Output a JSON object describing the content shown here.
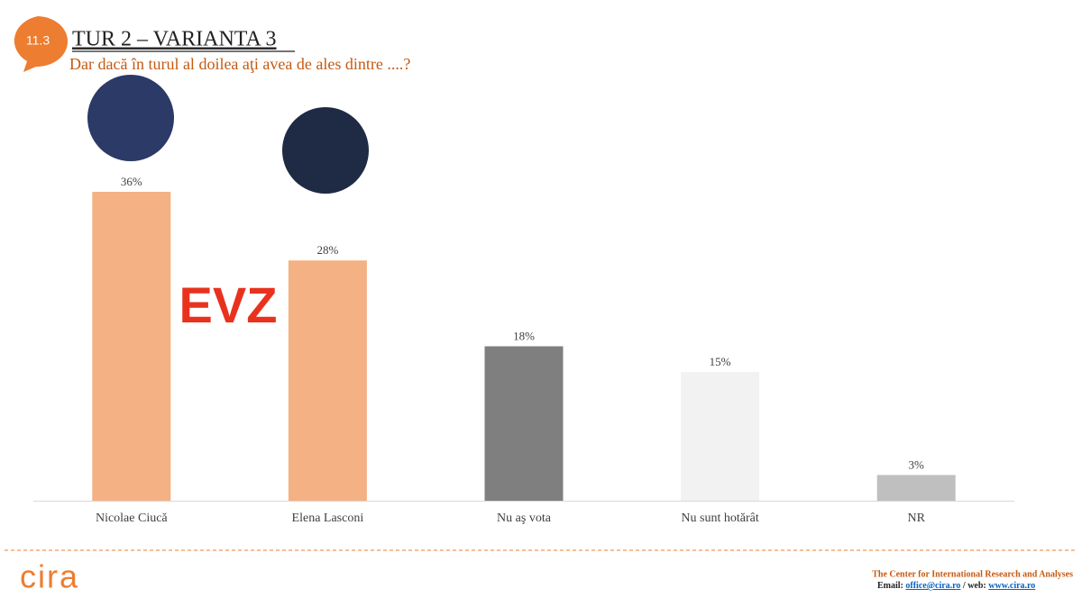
{
  "chart_data": {
    "type": "bar",
    "badge": "11.3",
    "title": "TUR 2 – VARIANTA 3",
    "subtitle": "Dar dacă în turul al doilea aţi avea de ales dintre ....?",
    "watermark": "EVZ",
    "categories": [
      "Nicolae Ciucă",
      "Elena Lasconi",
      "Nu aş vota",
      "Nu sunt hotărât",
      "NR"
    ],
    "values": [
      36,
      28,
      18,
      15,
      3
    ],
    "value_labels": [
      "36%",
      "28%",
      "18%",
      "15%",
      "3%"
    ],
    "colors": [
      "#f4b183",
      "#f4b183",
      "#7f7f7f",
      "#f2f2f2",
      "#bfbfbf"
    ]
  },
  "footer": {
    "logo": "cira",
    "org": "The Center for International Research and Analyses",
    "email_label": "Email:",
    "email": "office@cira.ro",
    "web_label": "/ web:",
    "web": "www.cira.ro"
  }
}
